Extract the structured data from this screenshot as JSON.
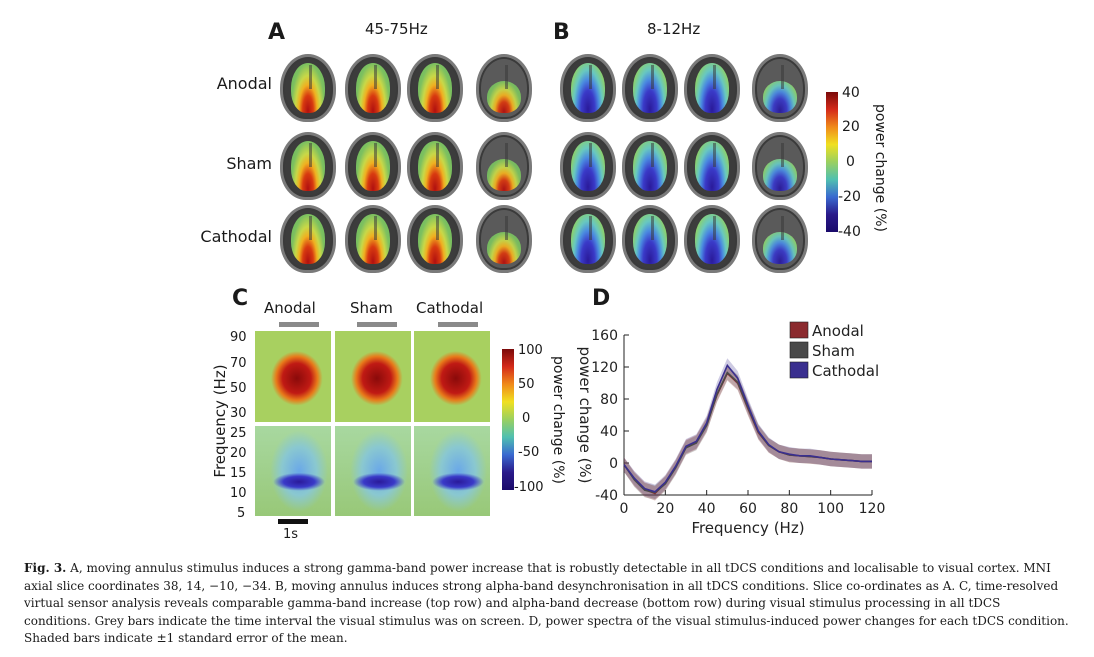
{
  "panel_a": {
    "letter": "A",
    "title": "45-75Hz"
  },
  "panel_b": {
    "letter": "B",
    "title": "8-12Hz"
  },
  "rows": [
    "Anodal",
    "Sham",
    "Cathodal"
  ],
  "colorbar_ab": {
    "ticks": [
      "40",
      "20",
      "0",
      "-20",
      "-40"
    ],
    "label": "power change (%)"
  },
  "panel_c": {
    "letter": "C",
    "conditions": [
      "Anodal",
      "Sham",
      "Cathodal"
    ],
    "ylabel": "Frequency (Hz)",
    "yticks_top": [
      "90",
      "70",
      "50",
      "30"
    ],
    "yticks_bottom": [
      "25",
      "20",
      "15",
      "10",
      "5"
    ],
    "scalebar": "1s",
    "colorbar": {
      "ticks": [
        "100",
        "50",
        "0",
        "-50",
        "-100"
      ],
      "label": "power change (%)"
    }
  },
  "panel_d": {
    "letter": "D"
  },
  "chart_data": {
    "type": "line",
    "xlabel": "Frequency (Hz)",
    "ylabel": "power change (%)",
    "xlim": [
      0,
      120
    ],
    "ylim": [
      -40,
      160
    ],
    "xticks": [
      0,
      20,
      40,
      60,
      80,
      100,
      120
    ],
    "yticks": [
      -40,
      0,
      40,
      80,
      120,
      160
    ],
    "legend_position": "top-right",
    "x": [
      0,
      5,
      10,
      15,
      20,
      25,
      30,
      35,
      40,
      45,
      50,
      55,
      60,
      65,
      70,
      75,
      80,
      85,
      90,
      95,
      100,
      105,
      110,
      115,
      120
    ],
    "series": [
      {
        "name": "Anodal",
        "color": "#8b2a2e",
        "values": [
          -2,
          -20,
          -33,
          -38,
          -25,
          -5,
          20,
          26,
          48,
          85,
          112,
          100,
          68,
          38,
          22,
          14,
          10,
          9,
          8,
          7,
          5,
          4,
          3,
          2,
          2
        ]
      },
      {
        "name": "Sham",
        "color": "#4a4a4a",
        "values": [
          -2,
          -21,
          -34,
          -37,
          -26,
          -6,
          19,
          25,
          47,
          86,
          113,
          101,
          69,
          39,
          22,
          14,
          10,
          9,
          8,
          7,
          5,
          4,
          3,
          2,
          2
        ]
      },
      {
        "name": "Cathodal",
        "color": "#3a2f8f",
        "values": [
          -2,
          -19,
          -32,
          -36,
          -24,
          -4,
          21,
          27,
          50,
          92,
          122,
          106,
          72,
          40,
          23,
          14,
          11,
          9,
          9,
          7,
          5,
          4,
          3,
          2,
          2
        ]
      }
    ]
  },
  "caption": {
    "lead": "Fig. 3.",
    "text": " A, moving annulus stimulus induces a strong gamma-band power increase that is robustly detectable in all tDCS conditions and localisable to visual cortex. MNI axial slice coordinates 38, 14, −10, −34. B, moving annulus induces strong alpha-band desynchronisation in all tDCS conditions. Slice co-ordinates as A. C, time-resolved virtual sensor analysis reveals comparable gamma-band increase (top row) and alpha-band decrease (bottom row) during visual stimulus processing in all tDCS conditions. Grey bars indicate the time interval the visual stimulus was on screen. D, power spectra of the visual stimulus-induced power changes for each tDCS condition. Shaded bars indicate ±1 standard error of the mean."
  }
}
